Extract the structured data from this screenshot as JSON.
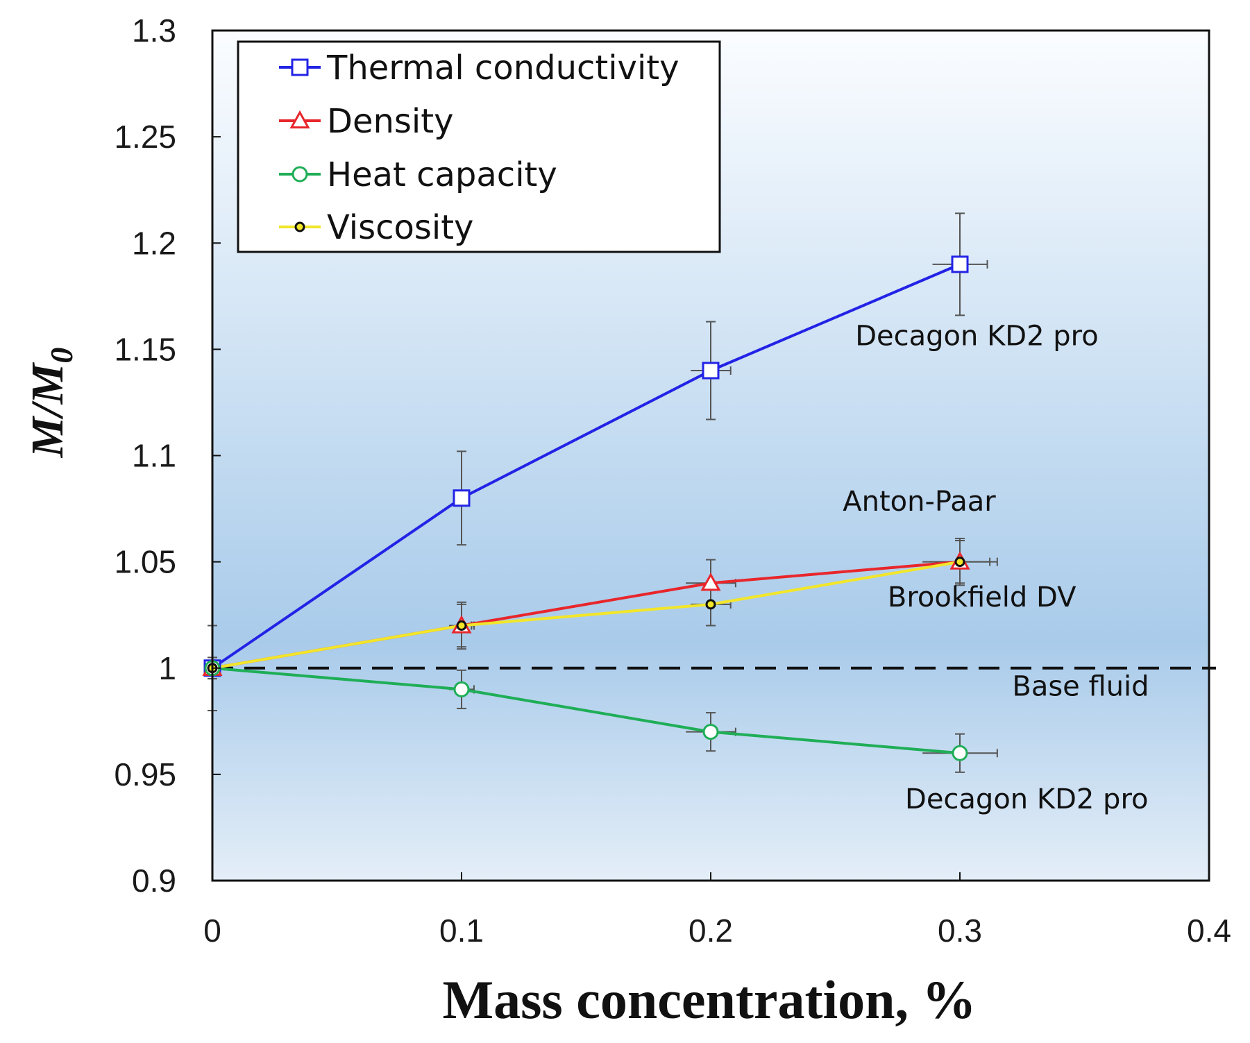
{
  "chart_data": {
    "type": "line",
    "title": "",
    "xlabel": "Mass concentration, %",
    "ylabel": "M/M",
    "ylabel_subscript": "0",
    "xlim": [
      0,
      0.4
    ],
    "ylim": [
      0.9,
      1.3
    ],
    "x_ticks": [
      0,
      0.1,
      0.2,
      0.3,
      0.4
    ],
    "x_tick_labels": [
      "0",
      "0.1",
      "0.2",
      "0.3",
      "0.4"
    ],
    "y_ticks": [
      0.9,
      0.95,
      1.0,
      1.05,
      1.1,
      1.15,
      1.2,
      1.25,
      1.3
    ],
    "y_tick_labels": [
      "0.9",
      "0.95",
      "1",
      "1.05",
      "1.1",
      "1.15",
      "1.2",
      "1.25",
      "1.3"
    ],
    "grid": false,
    "legend_position": "top-left",
    "series": [
      {
        "name": "Thermal conductivity",
        "color": "#2323e6",
        "marker": "square",
        "x": [
          0,
          0.1,
          0.2,
          0.3
        ],
        "y": [
          1.0,
          1.08,
          1.14,
          1.19
        ],
        "y_err": [
          0.005,
          0.022,
          0.023,
          0.024
        ],
        "x_err": [
          0.002,
          0.003,
          0.008,
          0.011
        ]
      },
      {
        "name": "Density",
        "color": "#e8262b",
        "marker": "triangle",
        "x": [
          0,
          0.1,
          0.2,
          0.3
        ],
        "y": [
          1.0,
          1.02,
          1.04,
          1.05
        ],
        "y_err": [
          0.02,
          0.011,
          0.011,
          0.011
        ],
        "x_err": [
          0.002,
          0.005,
          0.01,
          0.015
        ]
      },
      {
        "name": "Heat capacity",
        "color": "#1fae57",
        "marker": "circle",
        "x": [
          0,
          0.1,
          0.2,
          0.3
        ],
        "y": [
          1.0,
          0.99,
          0.97,
          0.96
        ],
        "y_err": [
          0.02,
          0.009,
          0.009,
          0.009
        ],
        "x_err": [
          0.002,
          0.005,
          0.01,
          0.015
        ]
      },
      {
        "name": "Viscosity",
        "color": "#f2e62a",
        "marker": "dot",
        "x": [
          0,
          0.1,
          0.2,
          0.3
        ],
        "y": [
          1.0,
          1.02,
          1.03,
          1.05
        ],
        "y_err": [
          0.005,
          0.01,
          0.01,
          0.01
        ],
        "x_err": [
          0.002,
          0.004,
          0.008,
          0.012
        ]
      }
    ],
    "reference_line": {
      "label": "Base fluid",
      "y": 1.0,
      "style": "dashed",
      "color": "#111111"
    },
    "annotations": [
      {
        "text": "Decagon KD2 pro",
        "x": 0.258,
        "y": 1.152
      },
      {
        "text": "Anton-Paar",
        "x": 0.253,
        "y": 1.074
      },
      {
        "text": "Brookfield DV",
        "x": 0.271,
        "y": 1.029
      },
      {
        "text": "Base fluid",
        "x": 0.321,
        "y": 0.987
      },
      {
        "text": "Decagon KD2 pro",
        "x": 0.278,
        "y": 0.934
      }
    ]
  }
}
